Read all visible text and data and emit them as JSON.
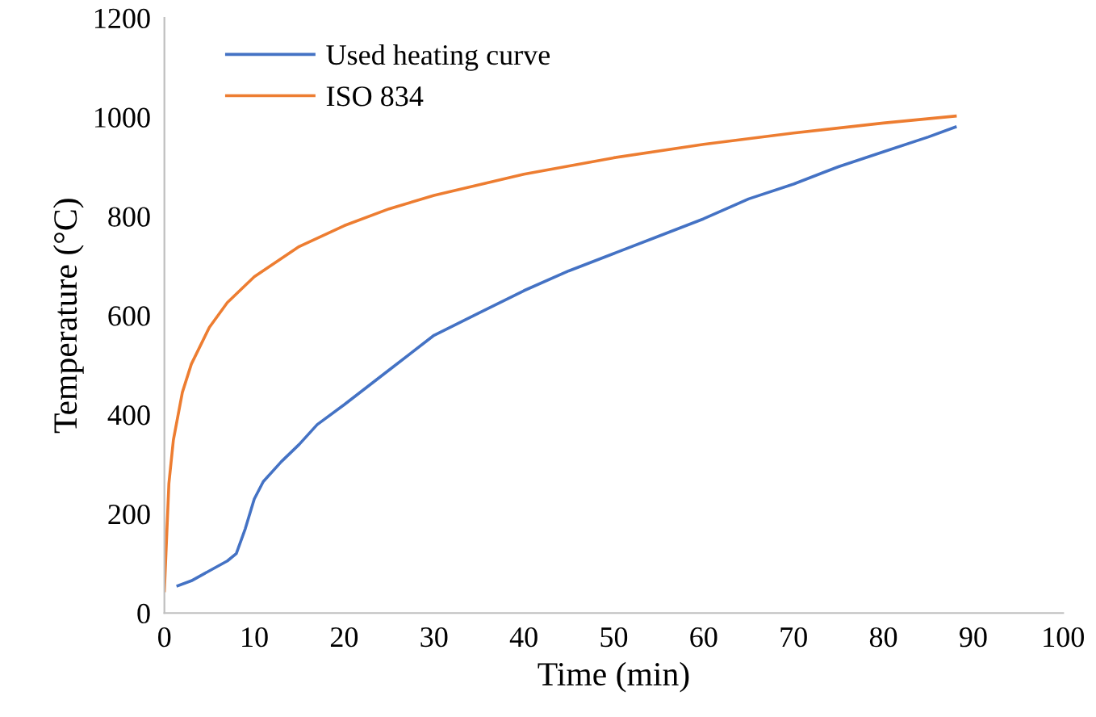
{
  "chart_data": {
    "type": "line",
    "xlabel": "Time (min)",
    "ylabel": "Temperature (°C)",
    "xlim": [
      0,
      100
    ],
    "ylim": [
      0,
      1200
    ],
    "xticks": [
      0,
      10,
      20,
      30,
      40,
      50,
      60,
      70,
      80,
      90,
      100
    ],
    "yticks": [
      0,
      200,
      400,
      600,
      800,
      1000,
      1200
    ],
    "grid": false,
    "legend": "top left",
    "marker": "none",
    "series": [
      {
        "name": "Used heating curve",
        "color": "#4472c4",
        "x": [
          1.5,
          3,
          5,
          7,
          8,
          9,
          10,
          11,
          13,
          15,
          17,
          20,
          25,
          30,
          35,
          40,
          45,
          50,
          55,
          60,
          65,
          70,
          75,
          80,
          85,
          88
        ],
        "values": [
          55,
          65,
          85,
          105,
          120,
          170,
          230,
          265,
          305,
          340,
          380,
          420,
          490,
          560,
          605,
          650,
          690,
          725,
          760,
          795,
          835,
          865,
          900,
          930,
          960,
          980
        ]
      },
      {
        "name": "ISO 834",
        "color": "#ed7d31",
        "x": [
          0,
          0.5,
          1,
          2,
          3,
          5,
          7,
          10,
          15,
          20,
          25,
          30,
          40,
          50,
          60,
          70,
          80,
          88
        ],
        "values": [
          45,
          261,
          349,
          445,
          502,
          576,
          626,
          678,
          739,
          781,
          815,
          842,
          885,
          918,
          945,
          968,
          988,
          1002
        ]
      }
    ]
  }
}
